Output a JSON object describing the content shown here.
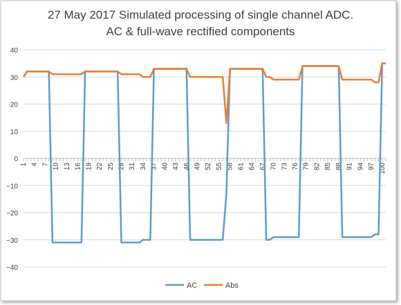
{
  "chart_data": {
    "type": "line",
    "title_lines": [
      "27 May 2017 Simulated processing of single channel ADC.",
      "AC & full-wave rectified components"
    ],
    "xlabel": "",
    "ylabel": "",
    "ylim": [
      -40,
      40
    ],
    "y_ticks": [
      "40",
      "30",
      "20",
      "10",
      "0",
      "−10",
      "−20",
      "−30",
      "−40"
    ],
    "y_tick_values": [
      40,
      30,
      20,
      10,
      0,
      -10,
      -20,
      -30,
      -40
    ],
    "x_tick_labels": [
      "1",
      "4",
      "7",
      "10",
      "13",
      "16",
      "19",
      "22",
      "25",
      "28",
      "31",
      "34",
      "37",
      "40",
      "43",
      "46",
      "49",
      "52",
      "55",
      "58",
      "61",
      "64",
      "67",
      "70",
      "73",
      "76",
      "79",
      "82",
      "85",
      "88",
      "91",
      "94",
      "97",
      "100"
    ],
    "x_tick_values": [
      1,
      4,
      7,
      10,
      13,
      16,
      19,
      22,
      25,
      28,
      31,
      34,
      37,
      40,
      43,
      46,
      49,
      52,
      55,
      58,
      61,
      64,
      67,
      70,
      73,
      76,
      79,
      82,
      85,
      88,
      91,
      94,
      97,
      100
    ],
    "x_max": 101,
    "grid": true,
    "legend_position": "bottom",
    "series": [
      {
        "name": "AC",
        "color": "#5B9BD5",
        "x": [
          1,
          2,
          3,
          4,
          5,
          6,
          7,
          8,
          9,
          10,
          11,
          12,
          13,
          14,
          15,
          16,
          17,
          18,
          19,
          20,
          21,
          22,
          23,
          24,
          25,
          26,
          27,
          28,
          29,
          30,
          31,
          32,
          33,
          34,
          35,
          36,
          37,
          38,
          39,
          40,
          41,
          42,
          43,
          44,
          45,
          46,
          47,
          48,
          49,
          50,
          51,
          52,
          53,
          54,
          55,
          56,
          57,
          58,
          59,
          60,
          61,
          62,
          63,
          64,
          65,
          66,
          67,
          68,
          69,
          70,
          71,
          72,
          73,
          74,
          75,
          76,
          77,
          78,
          79,
          80,
          81,
          82,
          83,
          84,
          85,
          86,
          87,
          88,
          89,
          90,
          91,
          92,
          93,
          94,
          95,
          96,
          97,
          98,
          99,
          100,
          101
        ],
        "values": [
          30,
          32,
          32,
          32,
          32,
          32,
          32,
          32,
          -31,
          -31,
          -31,
          -31,
          -31,
          -31,
          -31,
          -31,
          -31,
          32,
          32,
          32,
          32,
          32,
          32,
          32,
          32,
          32,
          32,
          -31,
          -31,
          -31,
          -31,
          -31,
          -31,
          -30,
          -30,
          -30,
          33,
          33,
          33,
          33,
          33,
          33,
          33,
          33,
          33,
          33,
          -30,
          -30,
          -30,
          -30,
          -30,
          -30,
          -30,
          -30,
          -30,
          -30,
          -13,
          33,
          33,
          33,
          33,
          33,
          33,
          33,
          33,
          33,
          33,
          -30,
          -30,
          -29,
          -29,
          -29,
          -29,
          -29,
          -29,
          -29,
          -29,
          34,
          34,
          34,
          34,
          34,
          34,
          34,
          34,
          34,
          34,
          34,
          -29,
          -29,
          -29,
          -29,
          -29,
          -29,
          -29,
          -29,
          -29,
          -28,
          -28,
          35,
          35
        ]
      },
      {
        "name": "Abs",
        "color": "#ED7D31",
        "x": [
          1,
          2,
          3,
          4,
          5,
          6,
          7,
          8,
          9,
          10,
          11,
          12,
          13,
          14,
          15,
          16,
          17,
          18,
          19,
          20,
          21,
          22,
          23,
          24,
          25,
          26,
          27,
          28,
          29,
          30,
          31,
          32,
          33,
          34,
          35,
          36,
          37,
          38,
          39,
          40,
          41,
          42,
          43,
          44,
          45,
          46,
          47,
          48,
          49,
          50,
          51,
          52,
          53,
          54,
          55,
          56,
          57,
          58,
          59,
          60,
          61,
          62,
          63,
          64,
          65,
          66,
          67,
          68,
          69,
          70,
          71,
          72,
          73,
          74,
          75,
          76,
          77,
          78,
          79,
          80,
          81,
          82,
          83,
          84,
          85,
          86,
          87,
          88,
          89,
          90,
          91,
          92,
          93,
          94,
          95,
          96,
          97,
          98,
          99,
          100,
          101
        ],
        "values": [
          30,
          32,
          32,
          32,
          32,
          32,
          32,
          32,
          31,
          31,
          31,
          31,
          31,
          31,
          31,
          31,
          31,
          32,
          32,
          32,
          32,
          32,
          32,
          32,
          32,
          32,
          32,
          31,
          31,
          31,
          31,
          31,
          31,
          30,
          30,
          30,
          33,
          33,
          33,
          33,
          33,
          33,
          33,
          33,
          33,
          33,
          30,
          30,
          30,
          30,
          30,
          30,
          30,
          30,
          30,
          30,
          13,
          33,
          33,
          33,
          33,
          33,
          33,
          33,
          33,
          33,
          33,
          30,
          30,
          29,
          29,
          29,
          29,
          29,
          29,
          29,
          29,
          34,
          34,
          34,
          34,
          34,
          34,
          34,
          34,
          34,
          34,
          34,
          29,
          29,
          29,
          29,
          29,
          29,
          29,
          29,
          29,
          28,
          28,
          35,
          35
        ]
      }
    ]
  }
}
